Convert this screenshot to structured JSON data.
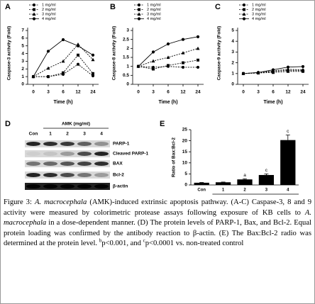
{
  "chart_data": [
    {
      "type": "line",
      "panel": "A",
      "x_label": "Time (h)",
      "y_label": "Caspase-3 activity (Fold)",
      "categories": [
        "0",
        "3",
        "6",
        "12",
        "24"
      ],
      "ylim": [
        0,
        7
      ],
      "yticks": [
        0,
        1,
        2,
        3,
        4,
        5,
        6,
        7
      ],
      "series": [
        {
          "name": "1 mg/ml",
          "color": "#000000",
          "marker": "circle",
          "dashed": true,
          "values": [
            1,
            1,
            1.3,
            2.6,
            1.1
          ]
        },
        {
          "name": "2 mg/ml",
          "color": "#000000",
          "marker": "square",
          "dashed": true,
          "values": [
            1,
            1,
            1.5,
            3.8,
            1.4
          ]
        },
        {
          "name": "3 mg/ml",
          "color": "#000000",
          "marker": "triangle",
          "dashed": true,
          "values": [
            1,
            2.1,
            3,
            5.2,
            3.2
          ]
        },
        {
          "name": "4 mg/ml",
          "color": "#000000",
          "marker": "circle",
          "dashed": false,
          "values": [
            1,
            4.3,
            5.8,
            5,
            3.8
          ]
        }
      ]
    },
    {
      "type": "line",
      "panel": "B",
      "x_label": "Time (h)",
      "y_label": "Caspase-8 activity (Fold)",
      "categories": [
        "0",
        "3",
        "6",
        "12",
        "24"
      ],
      "ylim": [
        0,
        3
      ],
      "yticks": [
        0,
        0.5,
        1,
        1.5,
        2,
        2.5,
        3
      ],
      "series": [
        {
          "name": "1 mg/ml",
          "color": "#000000",
          "marker": "circle",
          "dashed": true,
          "values": [
            1,
            0.95,
            1,
            0.95,
            0.95
          ]
        },
        {
          "name": "2 mg/ml",
          "color": "#000000",
          "marker": "square",
          "dashed": true,
          "values": [
            1,
            0.85,
            1.05,
            1.2,
            1.35
          ]
        },
        {
          "name": "3 mg/ml",
          "color": "#000000",
          "marker": "triangle",
          "dashed": true,
          "values": [
            1,
            1.3,
            1.5,
            1.75,
            2
          ]
        },
        {
          "name": "4 mg/ml",
          "color": "#000000",
          "marker": "circle",
          "dashed": false,
          "values": [
            1,
            1.8,
            2.25,
            2.5,
            2.65
          ]
        }
      ]
    },
    {
      "type": "line",
      "panel": "C",
      "x_label": "Time (h)",
      "y_label": "Caspase-9 activity (Fold)",
      "categories": [
        "0",
        "3",
        "6",
        "12",
        "24"
      ],
      "ylim": [
        0,
        5
      ],
      "yticks": [
        0,
        1,
        2,
        3,
        4,
        5
      ],
      "series": [
        {
          "name": "1 mg/ml",
          "color": "#000000",
          "marker": "circle",
          "dashed": true,
          "values": [
            1,
            1.05,
            1.2,
            1.3,
            1.3
          ]
        },
        {
          "name": "2 mg/ml",
          "color": "#000000",
          "marker": "square",
          "dashed": true,
          "values": [
            1,
            1.05,
            1.1,
            1.2,
            1.2
          ]
        },
        {
          "name": "3 mg/ml",
          "color": "#000000",
          "marker": "triangle",
          "dashed": true,
          "values": [
            1,
            1.1,
            1.25,
            1.4,
            1.35
          ]
        },
        {
          "name": "4 mg/ml",
          "color": "#000000",
          "marker": "circle",
          "dashed": false,
          "values": [
            1,
            1.1,
            1.35,
            1.6,
            1.65
          ]
        }
      ]
    },
    {
      "type": "bar",
      "panel": "E",
      "x_label": "AMK (mg/ml)",
      "y_label": "Ratio of Bax:Bcl-2",
      "categories": [
        "Con",
        "1",
        "2",
        "3",
        "4"
      ],
      "values": [
        1,
        1.2,
        2.5,
        4.5,
        20.3
      ],
      "errors": [
        0.1,
        0.1,
        0.3,
        0.5,
        2.3
      ],
      "bar_labels": [
        null,
        null,
        "a",
        "c",
        "c"
      ],
      "color": "#000000",
      "ylim": [
        0,
        25
      ],
      "yticks": [
        0,
        5,
        10,
        15,
        20,
        25
      ]
    }
  ],
  "blot": {
    "panel": "D",
    "treatment": "AMK (mg/ml)",
    "lanes": [
      "Con",
      "1",
      "2",
      "3",
      "4"
    ],
    "rows": [
      "PARP-1",
      "Cleaved PARP-1",
      "BAX",
      "Bcl-2",
      "β-actin"
    ]
  },
  "caption": {
    "segments": [
      {
        "text": "Figure 3: ",
        "italic": false,
        "sup": false
      },
      {
        "text": "A. macrocephala",
        "italic": true,
        "sup": false
      },
      {
        "text": " (AMK)-induced extrinsic apoptosis pathway. (A-C) Caspase-3, 8 and 9 activity were measured by colorimetric protease assays following exposure of KB cells to ",
        "italic": false,
        "sup": false
      },
      {
        "text": "A. macrocephala",
        "italic": true,
        "sup": false
      },
      {
        "text": " in a dose-dependent manner. (D) The protein levels of PARP-1, Bax, and Bcl-2. Equal protein loading was confirmed by the antibody reaction to β-actin. (E) The Bax:Bcl-2 radio was determined at the protein level. ",
        "italic": false,
        "sup": false
      },
      {
        "text": "b",
        "italic": false,
        "sup": true
      },
      {
        "text": "p<0.001, and ",
        "italic": false,
        "sup": false
      },
      {
        "text": "c",
        "italic": false,
        "sup": true
      },
      {
        "text": "p<0.0001 vs. non-treated control",
        "italic": false,
        "sup": false
      }
    ]
  }
}
